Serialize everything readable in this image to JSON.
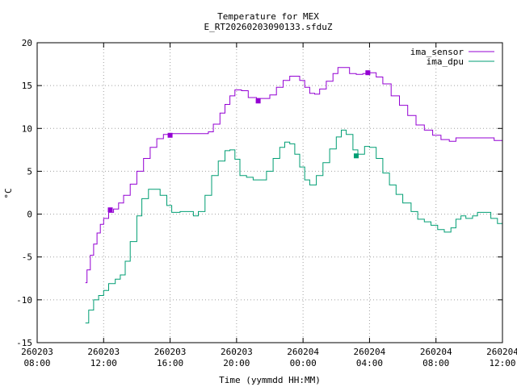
{
  "chart_data": {
    "type": "line",
    "title": "Temperature for MEX",
    "subtitle": "E_RT20260203090133.sfduZ",
    "xlabel": "Time (yymmdd HH:MM)",
    "ylabel": "°C",
    "ylim": [
      -15,
      20
    ],
    "yticks": [
      -15,
      -10,
      -5,
      0,
      5,
      10,
      15,
      20
    ],
    "xlim_hours": [
      8,
      36
    ],
    "xticks": [
      {
        "h": 8,
        "date": "260203",
        "time": "08:00"
      },
      {
        "h": 12,
        "date": "260203",
        "time": "12:00"
      },
      {
        "h": 16,
        "date": "260203",
        "time": "16:00"
      },
      {
        "h": 20,
        "date": "260203",
        "time": "20:00"
      },
      {
        "h": 24,
        "date": "260204",
        "time": "00:00"
      },
      {
        "h": 28,
        "date": "260204",
        "time": "04:00"
      },
      {
        "h": 32,
        "date": "260204",
        "time": "08:00"
      },
      {
        "h": 36,
        "date": "260204",
        "time": "12:00"
      }
    ],
    "grid": true,
    "legend_position": "top-right",
    "series": [
      {
        "name": "ima_sensor",
        "color": "#9400d3",
        "points": [
          [
            10.9,
            -8.0
          ],
          [
            11.0,
            -6.5
          ],
          [
            11.2,
            -4.8
          ],
          [
            11.4,
            -3.5
          ],
          [
            11.6,
            -2.2
          ],
          [
            11.8,
            -1.2
          ],
          [
            12.0,
            -0.5
          ],
          [
            12.3,
            0.2
          ],
          [
            12.6,
            0.6
          ],
          [
            12.9,
            1.3
          ],
          [
            13.2,
            2.2
          ],
          [
            13.6,
            3.5
          ],
          [
            14.0,
            5.0
          ],
          [
            14.4,
            6.5
          ],
          [
            14.8,
            7.8
          ],
          [
            15.2,
            8.8
          ],
          [
            15.6,
            9.3
          ],
          [
            16.0,
            9.4
          ],
          [
            17.0,
            9.4
          ],
          [
            18.0,
            9.4
          ],
          [
            18.3,
            9.6
          ],
          [
            18.6,
            10.5
          ],
          [
            19.0,
            11.8
          ],
          [
            19.3,
            12.8
          ],
          [
            19.6,
            13.8
          ],
          [
            19.9,
            14.5
          ],
          [
            20.3,
            14.4
          ],
          [
            20.7,
            13.6
          ],
          [
            21.2,
            13.5
          ],
          [
            21.7,
            13.5
          ],
          [
            22.0,
            13.9
          ],
          [
            22.4,
            14.8
          ],
          [
            22.8,
            15.6
          ],
          [
            23.2,
            16.1
          ],
          [
            23.5,
            16.1
          ],
          [
            23.8,
            15.6
          ],
          [
            24.1,
            14.8
          ],
          [
            24.4,
            14.1
          ],
          [
            24.7,
            14.0
          ],
          [
            25.0,
            14.6
          ],
          [
            25.4,
            15.5
          ],
          [
            25.8,
            16.4
          ],
          [
            26.1,
            17.1
          ],
          [
            26.5,
            17.1
          ],
          [
            26.8,
            16.4
          ],
          [
            27.2,
            16.3
          ],
          [
            27.6,
            16.4
          ],
          [
            28.0,
            16.5
          ],
          [
            28.4,
            16.0
          ],
          [
            28.8,
            15.2
          ],
          [
            29.3,
            13.8
          ],
          [
            29.8,
            12.7
          ],
          [
            30.3,
            11.5
          ],
          [
            30.8,
            10.4
          ],
          [
            31.3,
            9.8
          ],
          [
            31.8,
            9.2
          ],
          [
            32.3,
            8.7
          ],
          [
            32.8,
            8.5
          ],
          [
            33.2,
            8.9
          ],
          [
            34.0,
            8.9
          ],
          [
            35.0,
            8.9
          ],
          [
            35.5,
            8.6
          ],
          [
            36.0,
            8.0
          ]
        ],
        "markers": [
          [
            12.4,
            0.5
          ],
          [
            16.0,
            9.2
          ],
          [
            21.3,
            13.2
          ],
          [
            27.9,
            16.5
          ]
        ]
      },
      {
        "name": "ima_dpu",
        "color": "#009e73",
        "points": [
          [
            10.9,
            -12.7
          ],
          [
            11.1,
            -11.2
          ],
          [
            11.4,
            -10.0
          ],
          [
            11.7,
            -9.5
          ],
          [
            12.0,
            -8.9
          ],
          [
            12.3,
            -8.1
          ],
          [
            12.7,
            -7.6
          ],
          [
            13.0,
            -7.1
          ],
          [
            13.3,
            -5.5
          ],
          [
            13.6,
            -3.2
          ],
          [
            14.0,
            -0.2
          ],
          [
            14.3,
            1.8
          ],
          [
            14.7,
            2.9
          ],
          [
            15.0,
            2.9
          ],
          [
            15.4,
            2.2
          ],
          [
            15.8,
            1.0
          ],
          [
            16.1,
            0.2
          ],
          [
            16.6,
            0.3
          ],
          [
            17.0,
            0.3
          ],
          [
            17.4,
            -0.2
          ],
          [
            17.7,
            0.3
          ],
          [
            18.1,
            2.2
          ],
          [
            18.5,
            4.5
          ],
          [
            18.9,
            6.2
          ],
          [
            19.3,
            7.4
          ],
          [
            19.6,
            7.5
          ],
          [
            19.9,
            6.4
          ],
          [
            20.2,
            4.5
          ],
          [
            20.6,
            4.3
          ],
          [
            21.0,
            4.0
          ],
          [
            21.4,
            4.0
          ],
          [
            21.8,
            5.0
          ],
          [
            22.2,
            6.5
          ],
          [
            22.6,
            7.8
          ],
          [
            22.9,
            8.4
          ],
          [
            23.2,
            8.2
          ],
          [
            23.5,
            7.0
          ],
          [
            23.8,
            5.5
          ],
          [
            24.1,
            4.0
          ],
          [
            24.4,
            3.4
          ],
          [
            24.8,
            4.5
          ],
          [
            25.2,
            6.0
          ],
          [
            25.6,
            7.6
          ],
          [
            26.0,
            9.0
          ],
          [
            26.3,
            9.8
          ],
          [
            26.6,
            9.3
          ],
          [
            27.0,
            7.5
          ],
          [
            27.3,
            7.0
          ],
          [
            27.7,
            7.9
          ],
          [
            28.0,
            7.8
          ],
          [
            28.4,
            6.5
          ],
          [
            28.8,
            4.8
          ],
          [
            29.2,
            3.4
          ],
          [
            29.6,
            2.3
          ],
          [
            30.0,
            1.3
          ],
          [
            30.5,
            0.3
          ],
          [
            30.9,
            -0.6
          ],
          [
            31.3,
            -0.9
          ],
          [
            31.7,
            -1.3
          ],
          [
            32.1,
            -1.8
          ],
          [
            32.5,
            -2.1
          ],
          [
            32.9,
            -1.6
          ],
          [
            33.2,
            -0.6
          ],
          [
            33.5,
            -0.2
          ],
          [
            33.8,
            -0.5
          ],
          [
            34.2,
            -0.2
          ],
          [
            34.5,
            0.2
          ],
          [
            34.9,
            0.2
          ],
          [
            35.3,
            -0.5
          ],
          [
            35.7,
            -1.1
          ],
          [
            36.0,
            -1.6
          ]
        ],
        "markers": [
          [
            27.2,
            6.8
          ]
        ]
      }
    ]
  }
}
